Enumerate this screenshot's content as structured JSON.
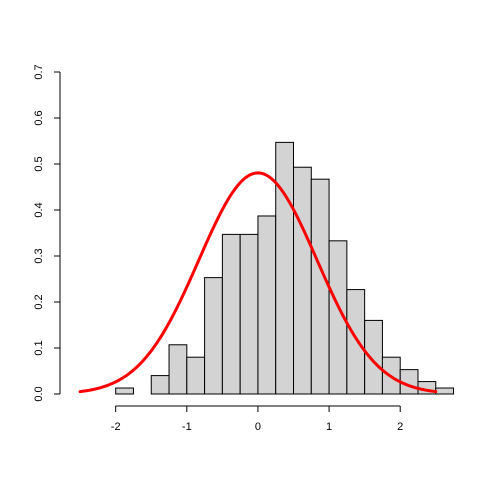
{
  "chart_data": {
    "type": "bar",
    "title": "",
    "xlabel": "",
    "ylabel": "",
    "xlim": [
      -2.6,
      2.7
    ],
    "ylim": [
      0,
      0.7
    ],
    "x_ticks": [
      "-2",
      "-1",
      "0",
      "1",
      "2"
    ],
    "y_ticks": [
      "0.0",
      "0.1",
      "0.2",
      "0.3",
      "0.4",
      "0.5",
      "0.6",
      "0.7"
    ],
    "grid": false,
    "bar_fill": "#d3d3d3",
    "bar_stroke": "#000000",
    "curve_color": "#ff0000",
    "histogram": {
      "bins": [
        {
          "x0": -2.0,
          "x1": -1.75,
          "density": 0.013
        },
        {
          "x0": -1.75,
          "x1": -1.5,
          "density": 0.0
        },
        {
          "x0": -1.5,
          "x1": -1.25,
          "density": 0.04
        },
        {
          "x0": -1.25,
          "x1": -1.0,
          "density": 0.107
        },
        {
          "x0": -1.0,
          "x1": -0.75,
          "density": 0.08
        },
        {
          "x0": -0.75,
          "x1": -0.5,
          "density": 0.253
        },
        {
          "x0": -0.5,
          "x1": -0.25,
          "density": 0.347
        },
        {
          "x0": -0.25,
          "x1": 0.0,
          "density": 0.347
        },
        {
          "x0": 0.0,
          "x1": 0.25,
          "density": 0.387
        },
        {
          "x0": 0.25,
          "x1": 0.5,
          "density": 0.547
        },
        {
          "x0": 0.5,
          "x1": 0.75,
          "density": 0.493
        },
        {
          "x0": 0.75,
          "x1": 1.0,
          "density": 0.467
        },
        {
          "x0": 1.0,
          "x1": 1.25,
          "density": 0.333
        },
        {
          "x0": 1.25,
          "x1": 1.5,
          "density": 0.227
        },
        {
          "x0": 1.5,
          "x1": 1.75,
          "density": 0.16
        },
        {
          "x0": 1.75,
          "x1": 2.0,
          "density": 0.08
        },
        {
          "x0": 2.0,
          "x1": 2.25,
          "density": 0.053
        },
        {
          "x0": 2.25,
          "x1": 2.5,
          "density": 0.027
        },
        {
          "x0": 2.5,
          "x1": 2.75,
          "density": 0.013
        }
      ]
    },
    "curve": {
      "type": "normal_density",
      "mean": 0.0,
      "sd": 0.83,
      "x_range": [
        -2.5,
        2.5
      ]
    }
  }
}
